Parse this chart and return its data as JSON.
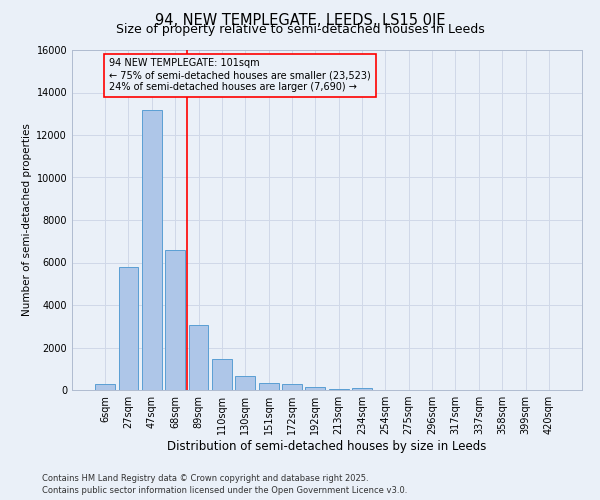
{
  "title1": "94, NEW TEMPLEGATE, LEEDS, LS15 0JE",
  "title2": "Size of property relative to semi-detached houses in Leeds",
  "xlabel": "Distribution of semi-detached houses by size in Leeds",
  "ylabel": "Number of semi-detached properties",
  "categories": [
    "6sqm",
    "27sqm",
    "47sqm",
    "68sqm",
    "89sqm",
    "110sqm",
    "130sqm",
    "151sqm",
    "172sqm",
    "192sqm",
    "213sqm",
    "234sqm",
    "254sqm",
    "275sqm",
    "296sqm",
    "317sqm",
    "337sqm",
    "358sqm",
    "399sqm",
    "420sqm"
  ],
  "values": [
    300,
    5800,
    13200,
    6600,
    3050,
    1480,
    650,
    320,
    270,
    120,
    55,
    80,
    0,
    0,
    0,
    0,
    0,
    0,
    0,
    0
  ],
  "bar_color": "#aec6e8",
  "bar_edge_color": "#5a9fd4",
  "grid_color": "#d0d8e8",
  "bg_color": "#eaf0f8",
  "vline_color": "red",
  "vline_pos": 3.5,
  "annotation_box_text": "94 NEW TEMPLEGATE: 101sqm\n← 75% of semi-detached houses are smaller (23,523)\n24% of semi-detached houses are larger (7,690) →",
  "annotation_box_color": "red",
  "ylim": [
    0,
    16000
  ],
  "yticks": [
    0,
    2000,
    4000,
    6000,
    8000,
    10000,
    12000,
    14000,
    16000
  ],
  "footer": "Contains HM Land Registry data © Crown copyright and database right 2025.\nContains public sector information licensed under the Open Government Licence v3.0.",
  "title1_fontsize": 10.5,
  "title2_fontsize": 9,
  "xlabel_fontsize": 8.5,
  "ylabel_fontsize": 7.5,
  "tick_fontsize": 7,
  "annotation_fontsize": 7,
  "footer_fontsize": 6
}
